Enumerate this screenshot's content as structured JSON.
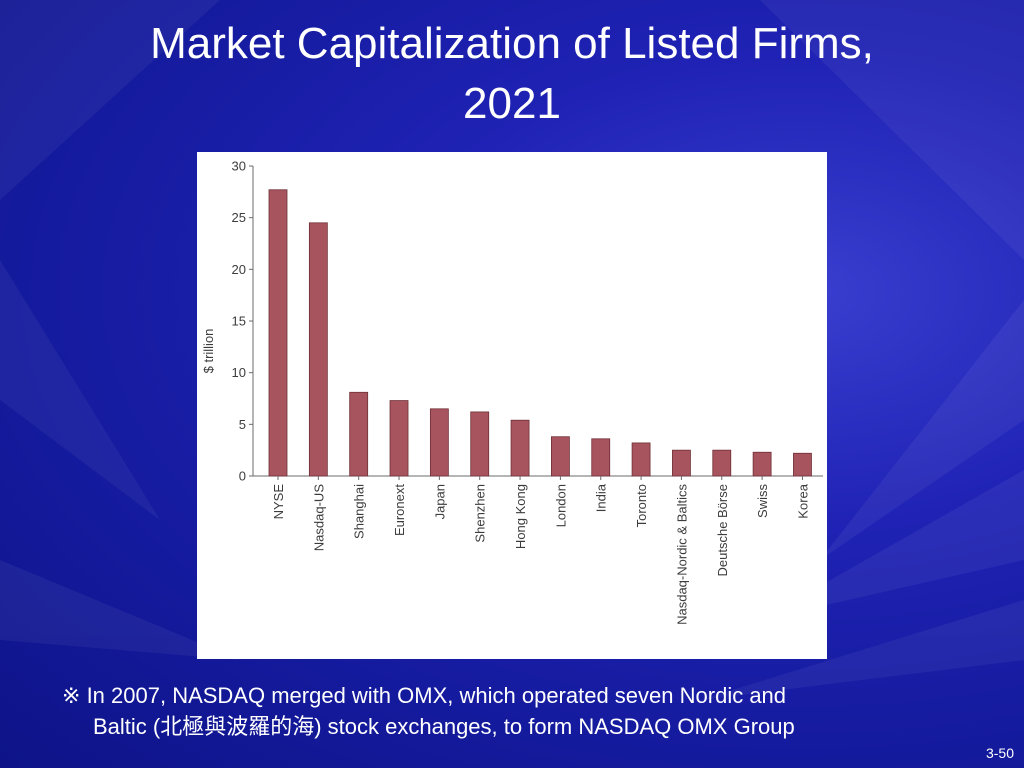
{
  "slide": {
    "title_line1": "Market Capitalization of Listed Firms,",
    "title_line2": "2021",
    "note_symbol": "※",
    "note_line1": "In 2007, NASDAQ merged with OMX, which operated seven Nordic and",
    "note_line2": "Baltic (北極與波羅的海) stock exchanges, to form NASDAQ OMX Group",
    "slide_number": "3-50"
  },
  "colors": {
    "bar": "#a8545e",
    "bar_edge": "#6e2f36",
    "axis": "#6b6b6b",
    "text": "#3c3c3c"
  },
  "chart_data": {
    "type": "bar",
    "title": "",
    "xlabel": "",
    "ylabel": "$ trillion",
    "ylim": [
      0,
      30
    ],
    "yticks": [
      0,
      5,
      10,
      15,
      20,
      25,
      30
    ],
    "categories": [
      "NYSE",
      "Nasdaq-US",
      "Shanghai",
      "Euronext",
      "Japan",
      "Shenzhen",
      "Hong Kong",
      "London",
      "India",
      "Toronto",
      "Nasdaq-Nordic & Baltics",
      "Deutsche Börse",
      "Swiss",
      "Korea"
    ],
    "values": [
      27.7,
      24.5,
      8.1,
      7.3,
      6.5,
      6.2,
      5.4,
      3.8,
      3.6,
      3.2,
      2.5,
      2.5,
      2.3,
      2.2
    ]
  }
}
